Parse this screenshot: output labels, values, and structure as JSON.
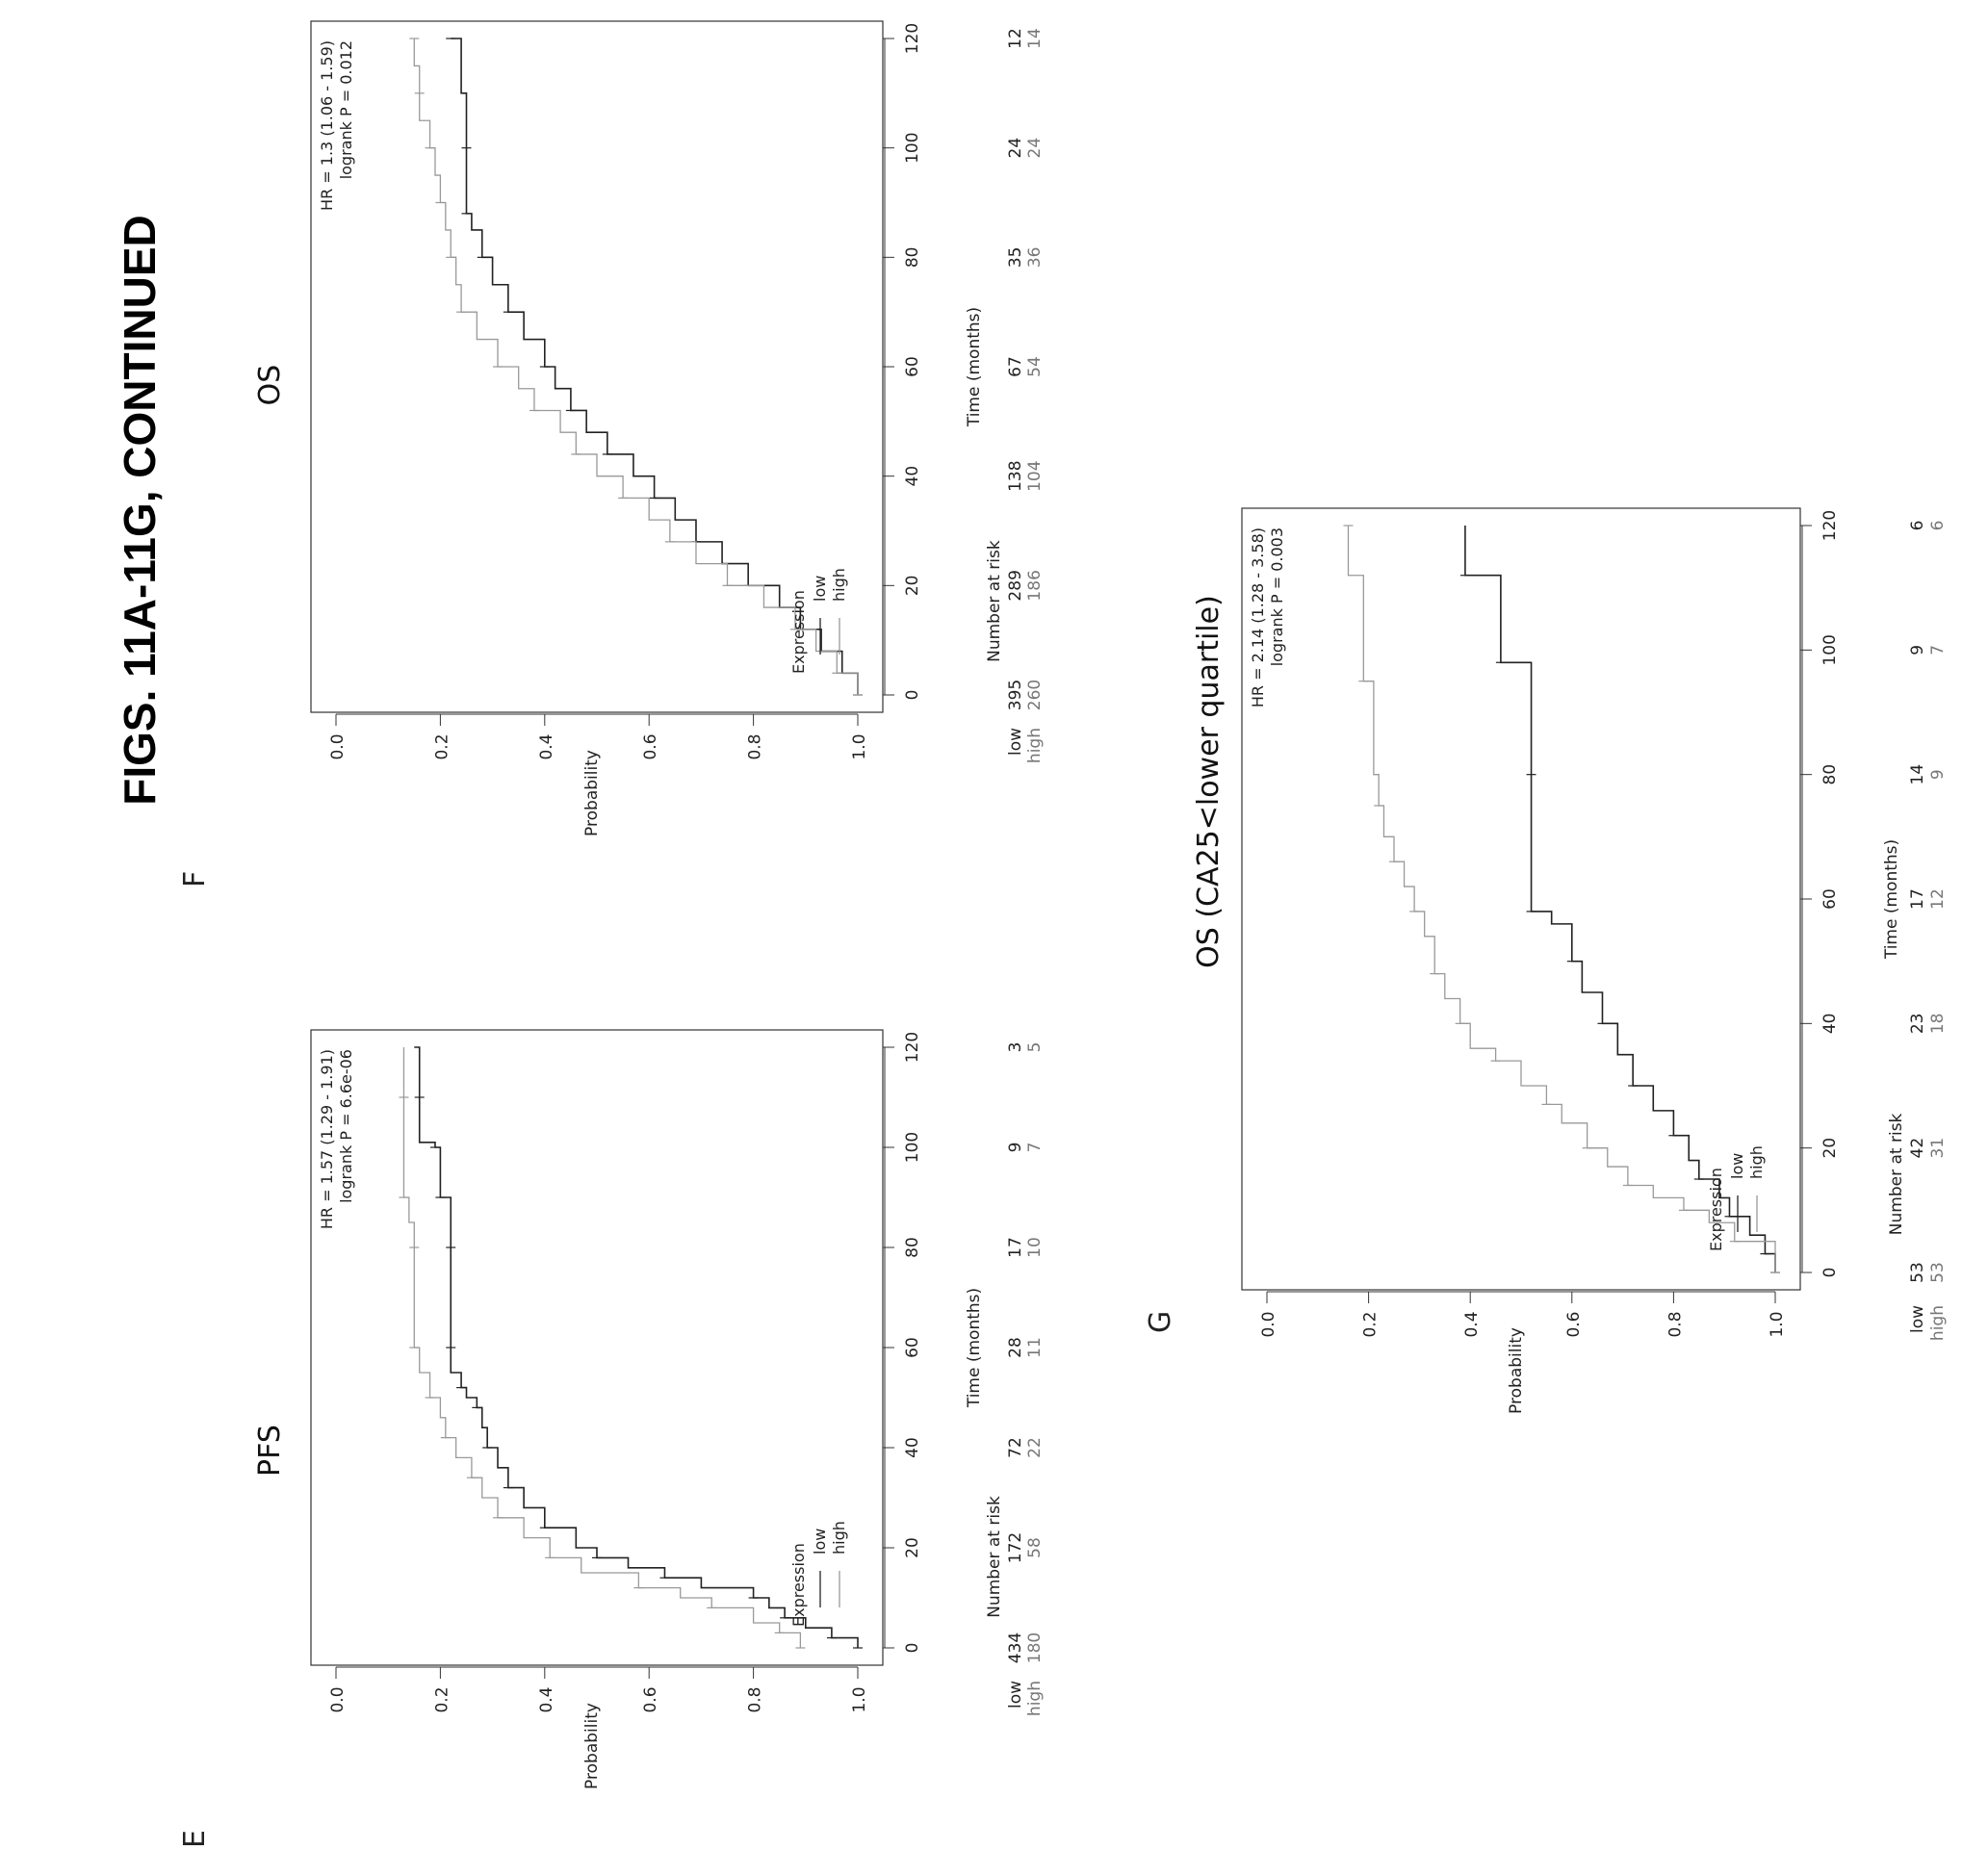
{
  "figure_title": "FIGS. 11A-11G, CONTINUED",
  "panels": [
    {
      "letter": "E",
      "title": "PFS",
      "legend": {
        "title": "Expression",
        "entries": [
          "low",
          "high"
        ]
      },
      "stats": [
        "HR = 1.57 (1.29 - 1.91)",
        "logrank P = 6.6e-06"
      ],
      "ylabel": "Probability",
      "xlabel": "Time (months)",
      "risk": {
        "header": "Number at risk",
        "rows": [
          {
            "label": "low",
            "values": [
              "434",
              "172",
              "72",
              "28",
              "17",
              "9",
              "3"
            ]
          },
          {
            "label": "high",
            "values": [
              "180",
              "58",
              "22",
              "11",
              "10",
              "7",
              "5"
            ]
          }
        ]
      }
    },
    {
      "letter": "F",
      "title": "OS",
      "legend": {
        "title": "Expression",
        "entries": [
          "low",
          "high"
        ]
      },
      "stats": [
        "HR = 1.3 (1.06 - 1.59)",
        "logrank P = 0.012"
      ],
      "ylabel": "Probability",
      "xlabel": "Time (months)",
      "risk": {
        "header": "Number at risk",
        "rows": [
          {
            "label": "low",
            "values": [
              "395",
              "289",
              "138",
              "67",
              "35",
              "24",
              "12"
            ]
          },
          {
            "label": "high",
            "values": [
              "260",
              "186",
              "104",
              "54",
              "36",
              "24",
              "14"
            ]
          }
        ]
      }
    },
    {
      "letter": "G",
      "title": "OS (CA25<lower quartile)",
      "legend": {
        "title": "Expression",
        "entries": [
          "low",
          "high"
        ]
      },
      "stats": [
        "HR = 2.14 (1.28 - 3.58)",
        "logrank P = 0.003"
      ],
      "ylabel": "Probability",
      "xlabel": "Time (months)",
      "risk": {
        "header": "Number at risk",
        "rows": [
          {
            "label": "low",
            "values": [
              "53",
              "42",
              "23",
              "17",
              "14",
              "9",
              "6"
            ]
          },
          {
            "label": "high",
            "values": [
              "53",
              "31",
              "18",
              "12",
              "9",
              "7",
              "6"
            ]
          }
        ]
      }
    }
  ],
  "chart_data": [
    {
      "type": "line",
      "title": "PFS",
      "xlabel": "Time (months)",
      "ylabel": "Probability",
      "xlim": [
        0,
        120
      ],
      "ylim": [
        0,
        1
      ],
      "x_ticks": [
        0,
        20,
        40,
        60,
        80,
        100,
        120
      ],
      "y_ticks": [
        "0.0",
        "0.2",
        "0.4",
        "0.6",
        "0.8",
        "1.0"
      ],
      "grid": false,
      "legend_position": "bottom-left",
      "series": [
        {
          "name": "low",
          "color": "#222222",
          "points": [
            [
              0,
              1.0
            ],
            [
              2,
              0.95
            ],
            [
              4,
              0.9
            ],
            [
              6,
              0.86
            ],
            [
              8,
              0.83
            ],
            [
              10,
              0.8
            ],
            [
              12,
              0.7
            ],
            [
              14,
              0.63
            ],
            [
              16,
              0.56
            ],
            [
              18,
              0.5
            ],
            [
              20,
              0.46
            ],
            [
              24,
              0.4
            ],
            [
              28,
              0.36
            ],
            [
              32,
              0.33
            ],
            [
              36,
              0.31
            ],
            [
              40,
              0.29
            ],
            [
              44,
              0.28
            ],
            [
              48,
              0.27
            ],
            [
              50,
              0.25
            ],
            [
              52,
              0.24
            ],
            [
              55,
              0.22
            ],
            [
              60,
              0.22
            ],
            [
              70,
              0.22
            ],
            [
              80,
              0.22
            ],
            [
              88,
              0.22
            ],
            [
              90,
              0.2
            ],
            [
              95,
              0.2
            ],
            [
              100,
              0.19
            ],
            [
              101,
              0.16
            ],
            [
              110,
              0.16
            ],
            [
              120,
              0.15
            ]
          ]
        },
        {
          "name": "high",
          "color": "#999999",
          "points": [
            [
              0,
              0.89
            ],
            [
              3,
              0.85
            ],
            [
              5,
              0.8
            ],
            [
              8,
              0.72
            ],
            [
              10,
              0.66
            ],
            [
              12,
              0.58
            ],
            [
              15,
              0.47
            ],
            [
              18,
              0.41
            ],
            [
              22,
              0.36
            ],
            [
              26,
              0.31
            ],
            [
              30,
              0.28
            ],
            [
              34,
              0.26
            ],
            [
              38,
              0.23
            ],
            [
              42,
              0.21
            ],
            [
              46,
              0.2
            ],
            [
              50,
              0.18
            ],
            [
              55,
              0.16
            ],
            [
              60,
              0.15
            ],
            [
              70,
              0.15
            ],
            [
              80,
              0.15
            ],
            [
              85,
              0.14
            ],
            [
              90,
              0.13
            ],
            [
              100,
              0.13
            ],
            [
              110,
              0.13
            ],
            [
              120,
              0.13
            ]
          ]
        }
      ]
    },
    {
      "type": "line",
      "title": "OS",
      "xlabel": "Time (months)",
      "ylabel": "Probability",
      "xlim": [
        0,
        120
      ],
      "ylim": [
        0,
        1
      ],
      "x_ticks": [
        0,
        20,
        40,
        60,
        80,
        100,
        120
      ],
      "y_ticks": [
        "0.0",
        "0.2",
        "0.4",
        "0.6",
        "0.8",
        "1.0"
      ],
      "grid": false,
      "legend_position": "bottom-left",
      "series": [
        {
          "name": "low",
          "color": "#222222",
          "points": [
            [
              0,
              1.0
            ],
            [
              4,
              0.97
            ],
            [
              8,
              0.93
            ],
            [
              12,
              0.89
            ],
            [
              16,
              0.85
            ],
            [
              20,
              0.79
            ],
            [
              24,
              0.74
            ],
            [
              28,
              0.69
            ],
            [
              32,
              0.65
            ],
            [
              36,
              0.61
            ],
            [
              40,
              0.57
            ],
            [
              44,
              0.52
            ],
            [
              48,
              0.48
            ],
            [
              52,
              0.45
            ],
            [
              56,
              0.42
            ],
            [
              60,
              0.4
            ],
            [
              65,
              0.36
            ],
            [
              70,
              0.33
            ],
            [
              75,
              0.3
            ],
            [
              80,
              0.28
            ],
            [
              85,
              0.26
            ],
            [
              88,
              0.25
            ],
            [
              90,
              0.25
            ],
            [
              100,
              0.25
            ],
            [
              110,
              0.24
            ],
            [
              120,
              0.22
            ]
          ]
        },
        {
          "name": "high",
          "color": "#999999",
          "points": [
            [
              0,
              1.0
            ],
            [
              4,
              0.96
            ],
            [
              8,
              0.92
            ],
            [
              12,
              0.88
            ],
            [
              16,
              0.82
            ],
            [
              20,
              0.75
            ],
            [
              24,
              0.69
            ],
            [
              28,
              0.64
            ],
            [
              32,
              0.6
            ],
            [
              36,
              0.55
            ],
            [
              40,
              0.5
            ],
            [
              44,
              0.46
            ],
            [
              48,
              0.43
            ],
            [
              52,
              0.38
            ],
            [
              56,
              0.35
            ],
            [
              60,
              0.31
            ],
            [
              65,
              0.27
            ],
            [
              70,
              0.24
            ],
            [
              75,
              0.23
            ],
            [
              80,
              0.22
            ],
            [
              85,
              0.21
            ],
            [
              90,
              0.2
            ],
            [
              95,
              0.19
            ],
            [
              100,
              0.18
            ],
            [
              105,
              0.16
            ],
            [
              110,
              0.16
            ],
            [
              115,
              0.15
            ],
            [
              120,
              0.15
            ]
          ]
        }
      ]
    },
    {
      "type": "line",
      "title": "OS (CA25<lower quartile)",
      "xlabel": "Time (months)",
      "ylabel": "Probability",
      "xlim": [
        0,
        120
      ],
      "ylim": [
        0,
        1
      ],
      "x_ticks": [
        0,
        20,
        40,
        60,
        80,
        100,
        120
      ],
      "y_ticks": [
        "0.0",
        "0.2",
        "0.4",
        "0.6",
        "0.8",
        "1.0"
      ],
      "grid": false,
      "legend_position": "bottom-left",
      "series": [
        {
          "name": "low",
          "color": "#222222",
          "points": [
            [
              0,
              1.0
            ],
            [
              3,
              0.98
            ],
            [
              6,
              0.95
            ],
            [
              9,
              0.91
            ],
            [
              12,
              0.89
            ],
            [
              15,
              0.85
            ],
            [
              18,
              0.83
            ],
            [
              22,
              0.8
            ],
            [
              26,
              0.76
            ],
            [
              30,
              0.72
            ],
            [
              35,
              0.69
            ],
            [
              40,
              0.66
            ],
            [
              45,
              0.62
            ],
            [
              50,
              0.6
            ],
            [
              56,
              0.56
            ],
            [
              58,
              0.52
            ],
            [
              70,
              0.52
            ],
            [
              80,
              0.52
            ],
            [
              96,
              0.52
            ],
            [
              98,
              0.46
            ],
            [
              110,
              0.46
            ],
            [
              112,
              0.39
            ],
            [
              120,
              0.39
            ]
          ]
        },
        {
          "name": "high",
          "color": "#999999",
          "points": [
            [
              0,
              1.0
            ],
            [
              5,
              0.92
            ],
            [
              8,
              0.87
            ],
            [
              10,
              0.82
            ],
            [
              12,
              0.76
            ],
            [
              14,
              0.71
            ],
            [
              17,
              0.67
            ],
            [
              20,
              0.63
            ],
            [
              24,
              0.58
            ],
            [
              27,
              0.55
            ],
            [
              30,
              0.5
            ],
            [
              34,
              0.45
            ],
            [
              36,
              0.4
            ],
            [
              40,
              0.38
            ],
            [
              44,
              0.35
            ],
            [
              48,
              0.33
            ],
            [
              54,
              0.31
            ],
            [
              58,
              0.29
            ],
            [
              62,
              0.27
            ],
            [
              66,
              0.25
            ],
            [
              70,
              0.23
            ],
            [
              75,
              0.22
            ],
            [
              80,
              0.21
            ],
            [
              95,
              0.19
            ],
            [
              112,
              0.16
            ],
            [
              120,
              0.16
            ]
          ]
        }
      ]
    }
  ]
}
